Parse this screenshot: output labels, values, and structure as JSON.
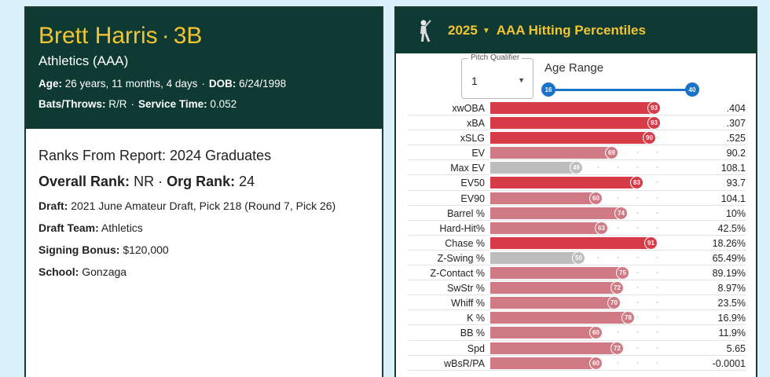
{
  "player": {
    "name": "Brett Harris",
    "position": "3B",
    "team": "Athletics (AAA)",
    "age_label": "Age:",
    "age": "26 years, 11 months, 4 days",
    "dob_label": "DOB:",
    "dob": "6/24/1998",
    "bats_label": "Bats/Throws:",
    "bats": "R/R",
    "service_label": "Service Time:",
    "service": "0.052"
  },
  "ranks": {
    "title": "Ranks From Report: 2024 Graduates",
    "overall_label": "Overall Rank:",
    "overall": "NR",
    "org_label": "Org Rank:",
    "org": "24",
    "draft_label": "Draft:",
    "draft": "2021 June Amateur Draft, Pick 218 (Round 7, Pick 26)",
    "draft_team_label": "Draft Team:",
    "draft_team": "Athletics",
    "bonus_label": "Signing Bonus:",
    "bonus": "$120,000",
    "school_label": "School:",
    "school": "Gonzaga"
  },
  "percentiles": {
    "year": "2025",
    "title": "AAA Hitting Percentiles",
    "pitch_qualifier_label": "Pitch Qualifier",
    "pitch_qualifier_value": "1",
    "age_range_label": "Age Range",
    "age_min": "16",
    "age_max": "40",
    "colors": {
      "high": "#d63b47",
      "mid": "#cf7a84",
      "low": "#bdbdbd"
    },
    "rows": [
      {
        "label": "xwOBA",
        "pct": 93,
        "value": ".404"
      },
      {
        "label": "xBA",
        "pct": 93,
        "value": ".307"
      },
      {
        "label": "xSLG",
        "pct": 90,
        "value": ".525"
      },
      {
        "label": "EV",
        "pct": 69,
        "value": "90.2"
      },
      {
        "label": "Max EV",
        "pct": 49,
        "value": "108.1"
      },
      {
        "label": "EV50",
        "pct": 83,
        "value": "93.7"
      },
      {
        "label": "EV90",
        "pct": 60,
        "value": "104.1"
      },
      {
        "label": "Barrel %",
        "pct": 74,
        "value": "10%"
      },
      {
        "label": "Hard-Hit%",
        "pct": 63,
        "value": "42.5%"
      },
      {
        "label": "Chase %",
        "pct": 91,
        "value": "18.26%"
      },
      {
        "label": "Z-Swing %",
        "pct": 50,
        "value": "65.49%"
      },
      {
        "label": "Z-Contact %",
        "pct": 75,
        "value": "89.19%"
      },
      {
        "label": "SwStr %",
        "pct": 72,
        "value": "8.97%"
      },
      {
        "label": "Whiff %",
        "pct": 70,
        "value": "23.5%"
      },
      {
        "label": "K %",
        "pct": 78,
        "value": "16.9%"
      },
      {
        "label": "BB %",
        "pct": 60,
        "value": "11.9%"
      },
      {
        "label": "Spd",
        "pct": 72,
        "value": "5.65"
      },
      {
        "label": "wBsR/PA",
        "pct": 60,
        "value": "-0.0001"
      }
    ]
  }
}
